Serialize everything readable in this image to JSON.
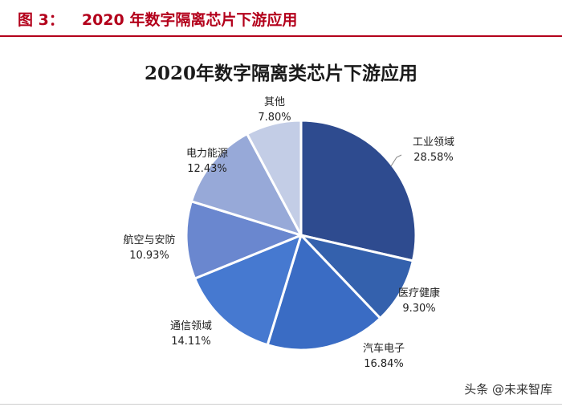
{
  "header": {
    "figure_label": "图 3：",
    "title": "2020 年数字隔离芯片下游应用"
  },
  "chart_data": {
    "type": "pie",
    "title": "2020年数字隔离类芯片下游应用",
    "unit": "%",
    "slices": [
      {
        "label": "工业领域",
        "value": 28.58,
        "value_text": "28.58%",
        "color": "#2e4b8f"
      },
      {
        "label": "医疗健康",
        "value": 9.3,
        "value_text": "9.30%",
        "color": "#3461ad"
      },
      {
        "label": "汽车电子",
        "value": 16.84,
        "value_text": "16.84%",
        "color": "#3a6cc4"
      },
      {
        "label": "通信领域",
        "value": 14.11,
        "value_text": "14.11%",
        "color": "#4679d0"
      },
      {
        "label": "航空与安防",
        "value": 10.93,
        "value_text": "10.93%",
        "color": "#6a87cf"
      },
      {
        "label": "电力能源",
        "value": 12.43,
        "value_text": "12.43%",
        "color": "#97a9d8"
      },
      {
        "label": "其他",
        "value": 7.8,
        "value_text": "7.80%",
        "color": "#c3cde6"
      }
    ]
  },
  "watermark": "头条 @未来智库"
}
